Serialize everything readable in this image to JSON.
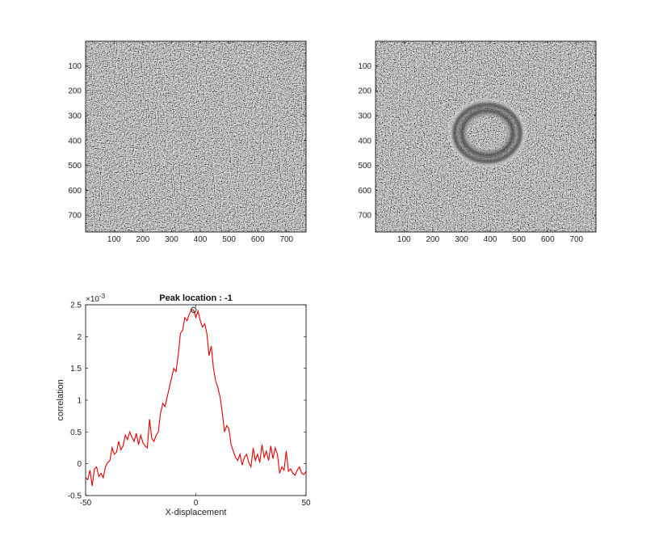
{
  "chart_data": [
    {
      "type": "heatmap",
      "colormap": "gray",
      "content": "noise",
      "xlim": [
        1,
        768
      ],
      "ylim": [
        1,
        768
      ],
      "ydir": "reverse",
      "xticks": [
        100,
        200,
        300,
        400,
        500,
        600,
        700
      ],
      "yticks": [
        100,
        200,
        300,
        400,
        500,
        600,
        700
      ]
    },
    {
      "type": "heatmap",
      "colormap": "gray",
      "content": "noise with ring pattern",
      "xlim": [
        1,
        768
      ],
      "ylim": [
        1,
        768
      ],
      "ydir": "reverse",
      "xticks": [
        100,
        200,
        300,
        400,
        500,
        600,
        700
      ],
      "yticks": [
        100,
        200,
        300,
        400,
        500,
        600,
        700
      ],
      "ring": {
        "center": [
          390,
          370
        ],
        "inner_radius": 82,
        "outer_radius": 125
      }
    },
    {
      "type": "line",
      "title": "Peak location : -1",
      "xlabel": "X-displacement",
      "ylabel": "correlation",
      "xlim": [
        -50,
        50
      ],
      "ylim": [
        -0.5,
        2.5
      ],
      "y_exponent_label": "×10",
      "y_exponent": "-3",
      "xticks": [
        -50,
        0,
        50
      ],
      "yticks": [
        -0.5,
        0,
        0.5,
        1,
        1.5,
        2,
        2.5
      ],
      "line_color": "#e00000",
      "peak": {
        "x": -1,
        "y": 2.42
      },
      "x": [
        -50,
        -49,
        -48,
        -47,
        -46,
        -45,
        -44,
        -43,
        -42,
        -41,
        -40,
        -39,
        -38,
        -37,
        -36,
        -35,
        -34,
        -33,
        -32,
        -31,
        -30,
        -29,
        -28,
        -27,
        -26,
        -25,
        -24,
        -23,
        -22,
        -21,
        -20,
        -19,
        -18,
        -17,
        -16,
        -15,
        -14,
        -13,
        -12,
        -11,
        -10,
        -9,
        -8,
        -7,
        -6,
        -5,
        -4,
        -3,
        -2,
        -1,
        0,
        1,
        2,
        3,
        4,
        5,
        6,
        7,
        8,
        9,
        10,
        11,
        12,
        13,
        14,
        15,
        16,
        17,
        18,
        19,
        20,
        21,
        22,
        23,
        24,
        25,
        26,
        27,
        28,
        29,
        30,
        31,
        32,
        33,
        34,
        35,
        36,
        37,
        38,
        39,
        40,
        41,
        42,
        43,
        44,
        45,
        46,
        47,
        48,
        49,
        50
      ],
      "y": [
        -0.22,
        -0.25,
        -0.1,
        -0.35,
        -0.08,
        -0.05,
        -0.2,
        -0.15,
        -0.22,
        -0.05,
        0.02,
        0.05,
        0.25,
        0.15,
        0.18,
        0.35,
        0.22,
        0.28,
        0.45,
        0.38,
        0.5,
        0.42,
        0.35,
        0.48,
        0.3,
        0.45,
        0.33,
        0.28,
        0.25,
        0.7,
        0.4,
        0.35,
        0.45,
        0.5,
        0.8,
        0.95,
        0.9,
        1.05,
        1.2,
        1.35,
        1.5,
        1.45,
        1.7,
        2.05,
        2.1,
        2.3,
        2.25,
        2.35,
        2.42,
        2.42,
        2.3,
        2.4,
        2.25,
        2.15,
        2.2,
        2.05,
        1.7,
        1.85,
        1.5,
        1.3,
        1.2,
        1.05,
        0.8,
        0.5,
        0.6,
        0.55,
        0.3,
        0.2,
        0.1,
        0.05,
        0.15,
        -0.02,
        0.1,
        0.15,
        0.02,
        -0.05,
        0.25,
        0.05,
        0.15,
        0.02,
        0.3,
        0.1,
        0.2,
        0.05,
        0.28,
        0.08,
        0.25,
        0.15,
        -0.15,
        -0.05,
        -0.1,
        0.2,
        -0.12,
        -0.08,
        -0.15,
        -0.18,
        -0.1,
        -0.05,
        -0.15,
        -0.17,
        -0.12
      ]
    }
  ]
}
